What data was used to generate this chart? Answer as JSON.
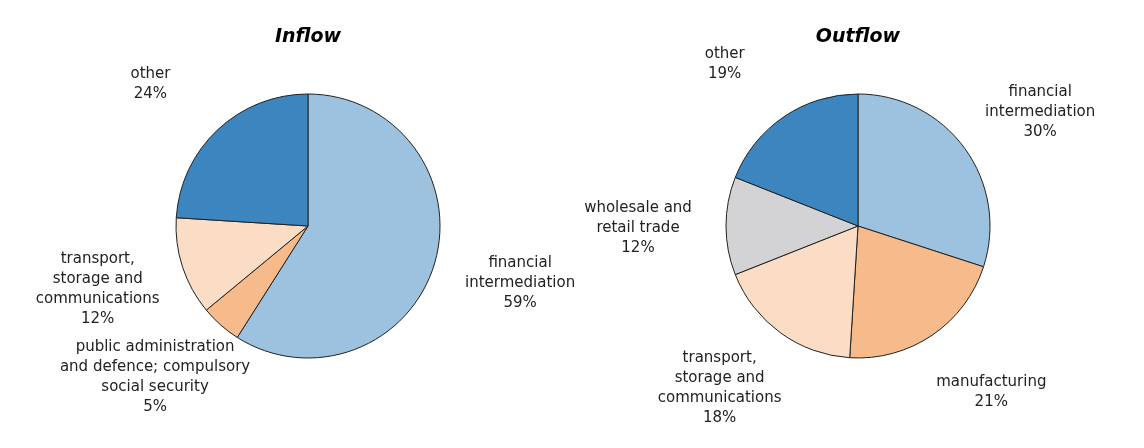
{
  "chart_data": [
    {
      "type": "pie",
      "title": "Inflow",
      "categories": [
        "financial intermediation",
        "public administration and defence; compulsory social security",
        "transport, storage and communications",
        "other"
      ],
      "values": [
        59,
        5,
        12,
        24
      ],
      "value_labels": [
        "59%",
        "5%",
        "12%",
        "24%"
      ],
      "colors": [
        "#9dc2df",
        "#f7bb8b",
        "#fbdcc4",
        "#3d85bf"
      ]
    },
    {
      "type": "pie",
      "title": "Outflow",
      "categories": [
        "financial intermediation",
        "manufacturing",
        "transport, storage and communications",
        "wholesale and retail trade",
        "other"
      ],
      "values": [
        30,
        21,
        18,
        12,
        19
      ],
      "value_labels": [
        "30%",
        "21%",
        "18%",
        "12%",
        "19%"
      ],
      "colors": [
        "#9dc2df",
        "#f7bb8b",
        "#fbdcc4",
        "#d3d3d5",
        "#3d85bf"
      ]
    }
  ]
}
